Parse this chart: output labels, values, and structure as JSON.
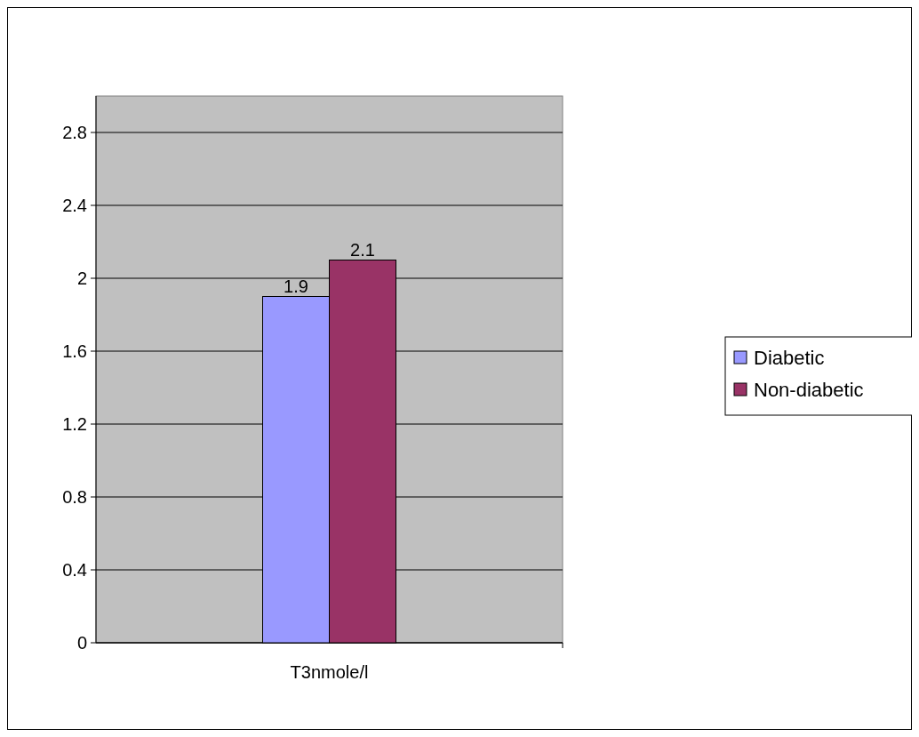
{
  "chart_data": {
    "type": "bar",
    "categories": [
      "T3nmole/l"
    ],
    "series": [
      {
        "name": "Diabetic",
        "color": "#9999ff",
        "values": [
          1.9
        ]
      },
      {
        "name": "Non-diabetic",
        "color": "#993366",
        "values": [
          2.1
        ]
      }
    ],
    "ylim": [
      0,
      3
    ],
    "yticks": [
      0,
      0.4,
      0.8,
      1.2,
      1.6,
      2,
      2.4,
      2.8
    ],
    "grid": "y",
    "legend": "right",
    "data_labels": true
  }
}
